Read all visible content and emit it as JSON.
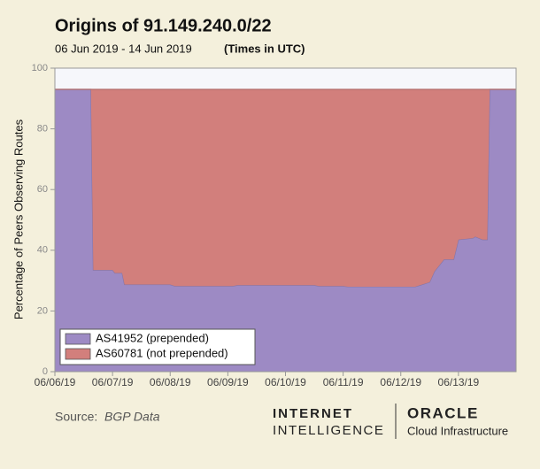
{
  "chart_data": {
    "type": "stacked_area",
    "title": "Origins of 91.149.240.0/22",
    "subtitle": "06 Jun 2019 - 14 Jun 2019",
    "time_note": "(Times in UTC)",
    "y_label": "Percentage of Peers Observing Routes",
    "x": [
      "2019-06-06 00:00",
      "2019-06-06 15:00",
      "2019-06-06 16:00",
      "2019-06-07 00:00",
      "2019-06-07 01:00",
      "2019-06-07 04:00",
      "2019-06-07 05:00",
      "2019-06-08 00:00",
      "2019-06-08 02:00",
      "2019-06-09 02:00",
      "2019-06-09 04:00",
      "2019-06-10 12:00",
      "2019-06-10 14:00",
      "2019-06-11 00:00",
      "2019-06-11 02:00",
      "2019-06-12 06:00",
      "2019-06-12 08:00",
      "2019-06-12 12:00",
      "2019-06-12 14:00",
      "2019-06-12 18:00",
      "2019-06-12 22:00",
      "2019-06-13 00:00",
      "2019-06-13 06:00",
      "2019-06-13 07:00",
      "2019-06-13 10:00",
      "2019-06-13 12:00",
      "2019-06-13 13:00",
      "2019-06-14 00:00"
    ],
    "series": [
      {
        "name": "AS41952 (prepended)",
        "color": "#9d8ac4",
        "values": [
          93,
          93,
          33.5,
          33.5,
          32.5,
          32.5,
          28.7,
          28.7,
          28.2,
          28.2,
          28.5,
          28.5,
          28.2,
          28.2,
          28,
          28,
          28.5,
          29.5,
          33,
          37,
          37,
          43.5,
          44,
          44.5,
          43.5,
          43.5,
          93,
          93
        ]
      },
      {
        "name": "AS60781 (not prepended)",
        "color": "#d27f7c",
        "values": [
          0,
          0,
          59.5,
          59.5,
          60.5,
          60.5,
          64.3,
          64.3,
          64.8,
          64.8,
          64.5,
          64.5,
          64.8,
          64.8,
          65,
          65,
          64.5,
          63.5,
          60,
          56,
          56,
          49.5,
          49,
          48.5,
          49.5,
          49.5,
          0,
          0
        ]
      }
    ],
    "xlim": [
      "2019-06-06 00:00",
      "2019-06-14 00:00"
    ],
    "xticks": [
      {
        "value": "2019-06-06 00:00",
        "label": "06/06/19"
      },
      {
        "value": "2019-06-07 00:00",
        "label": "06/07/19"
      },
      {
        "value": "2019-06-08 00:00",
        "label": "06/08/19"
      },
      {
        "value": "2019-06-09 00:00",
        "label": "06/09/19"
      },
      {
        "value": "2019-06-10 00:00",
        "label": "06/10/19"
      },
      {
        "value": "2019-06-11 00:00",
        "label": "06/11/19"
      },
      {
        "value": "2019-06-12 00:00",
        "label": "06/12/19"
      },
      {
        "value": "2019-06-13 00:00",
        "label": "06/13/19"
      }
    ],
    "ylim": [
      0,
      100
    ],
    "yticks": [
      0,
      20,
      40,
      60,
      80,
      100
    ],
    "legend": "lower left",
    "grid": false
  },
  "footer": {
    "source_label": "Source:",
    "source": "BGP Data",
    "brand_line1": "INTERNET",
    "brand_line2": "INTELLIGENCE",
    "partner": "ORACLE",
    "partner_sub": "Cloud Infrastructure"
  }
}
